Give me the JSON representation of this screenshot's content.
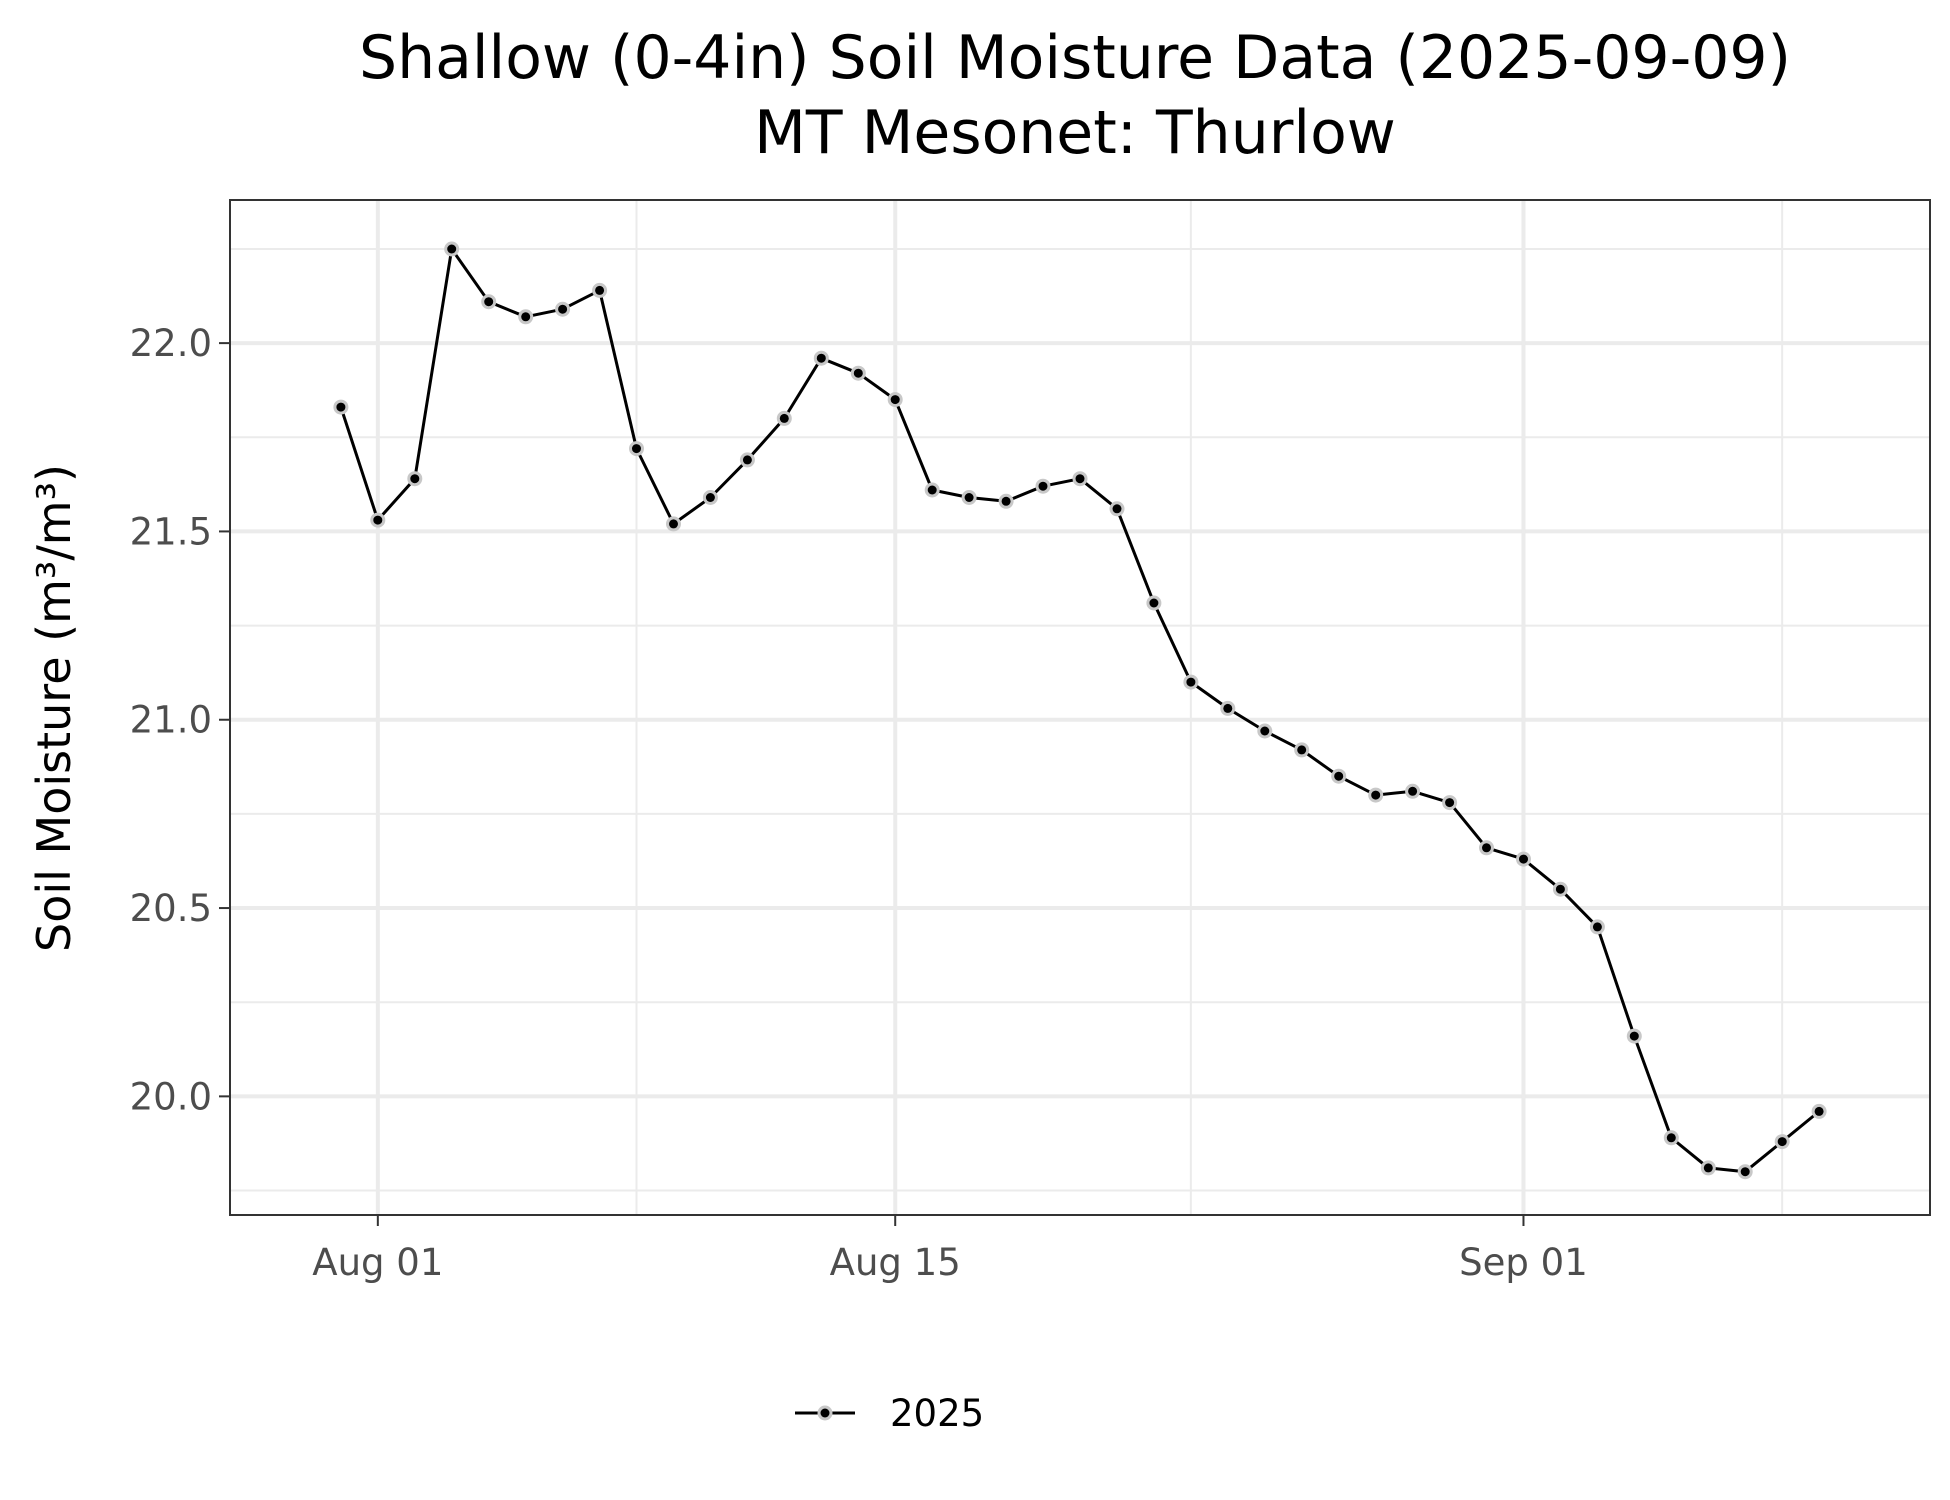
{
  "chart_data": {
    "type": "line",
    "title": "Shallow (0-4in) Soil Moisture Data (2025-09-09)",
    "subtitle": "MT Mesonet: Thurlow",
    "ylabel": "Soil Moisture (m³/m³)",
    "xlim": [
      "2025-07-28",
      "2025-09-12"
    ],
    "ylim": [
      19.685,
      22.38
    ],
    "grid": true,
    "legend_position": "bottom",
    "x_ticks": [
      {
        "date": "2025-08-01",
        "label": "Aug 01"
      },
      {
        "date": "2025-08-15",
        "label": "Aug 15"
      },
      {
        "date": "2025-09-01",
        "label": "Sep 01"
      }
    ],
    "x_minor_breaks": [
      "2025-08-08",
      "2025-08-23",
      "2025-09-08"
    ],
    "y_ticks": [
      {
        "value": 20.0,
        "label": "20.0"
      },
      {
        "value": 20.5,
        "label": "20.5"
      },
      {
        "value": 21.0,
        "label": "21.0"
      },
      {
        "value": 21.5,
        "label": "21.5"
      },
      {
        "value": 22.0,
        "label": "22.0"
      }
    ],
    "y_minor_breaks": [
      19.75,
      20.25,
      20.75,
      21.25,
      21.75,
      22.25
    ],
    "series": [
      {
        "name": "2025",
        "color": "#000000",
        "x": [
          "2025-07-31",
          "2025-08-01",
          "2025-08-02",
          "2025-08-03",
          "2025-08-04",
          "2025-08-05",
          "2025-08-06",
          "2025-08-07",
          "2025-08-08",
          "2025-08-09",
          "2025-08-10",
          "2025-08-11",
          "2025-08-12",
          "2025-08-13",
          "2025-08-14",
          "2025-08-15",
          "2025-08-16",
          "2025-08-17",
          "2025-08-18",
          "2025-08-19",
          "2025-08-20",
          "2025-08-21",
          "2025-08-22",
          "2025-08-23",
          "2025-08-24",
          "2025-08-25",
          "2025-08-26",
          "2025-08-27",
          "2025-08-28",
          "2025-08-29",
          "2025-08-30",
          "2025-08-31",
          "2025-09-01",
          "2025-09-02",
          "2025-09-03",
          "2025-09-04",
          "2025-09-05",
          "2025-09-06",
          "2025-09-07",
          "2025-09-08",
          "2025-09-09"
        ],
        "y": [
          21.83,
          21.53,
          21.64,
          22.25,
          22.11,
          22.07,
          22.09,
          22.14,
          21.72,
          21.52,
          21.59,
          21.69,
          21.8,
          21.96,
          21.92,
          21.85,
          21.61,
          21.59,
          21.58,
          21.62,
          21.64,
          21.56,
          21.31,
          21.1,
          21.03,
          20.97,
          20.92,
          20.85,
          20.8,
          20.81,
          20.78,
          20.66,
          20.63,
          20.55,
          20.45,
          20.16,
          19.89,
          19.81,
          19.8,
          19.88,
          19.96
        ]
      }
    ]
  }
}
